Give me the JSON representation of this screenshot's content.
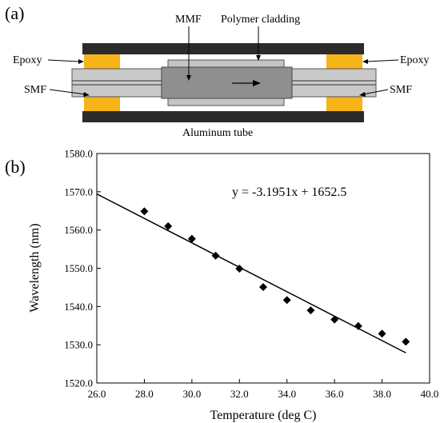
{
  "panel_a": {
    "label": "(a)",
    "labels": {
      "mmf": "MMF",
      "polymer_cladding": "Polymer cladding",
      "epoxy_left": "Epoxy",
      "epoxy_right": "Epoxy",
      "smf_left": "SMF",
      "smf_right": "SMF",
      "aluminum_tube": "Aluminum tube"
    },
    "colors": {
      "tube": "#2b2b2b",
      "epoxy": "#f6b418",
      "smf": "#c9c9c9",
      "mmf": "#8f8f8f",
      "cladding": "#c4c4c4"
    }
  },
  "chart_data": {
    "type": "scatter",
    "panel_label": "(b)",
    "xlabel": "Temperature (deg C)",
    "ylabel": "Wavelength (nm)",
    "xlim": [
      26.0,
      40.0
    ],
    "ylim": [
      1520.0,
      1580.0
    ],
    "x_ticks": [
      26.0,
      28.0,
      30.0,
      32.0,
      34.0,
      36.0,
      38.0,
      40.0
    ],
    "y_ticks": [
      1520.0,
      1530.0,
      1540.0,
      1550.0,
      1560.0,
      1570.0,
      1580.0
    ],
    "x_tick_labels": [
      "26.0",
      "28.0",
      "30.0",
      "32.0",
      "34.0",
      "36.0",
      "38.0",
      "40.0"
    ],
    "y_tick_labels": [
      "1520.0",
      "1530.0",
      "1540.0",
      "1550.0",
      "1560.0",
      "1570.0",
      "1580.0"
    ],
    "series": [
      {
        "marker": "diamond",
        "x": [
          28,
          29,
          30,
          31,
          32,
          33,
          34,
          35,
          36,
          37,
          38,
          39
        ],
        "y": [
          1564.9,
          1561.0,
          1557.7,
          1553.3,
          1549.9,
          1545.1,
          1541.7,
          1539.0,
          1536.6,
          1534.9,
          1532.9,
          1530.8
        ]
      }
    ],
    "fit": {
      "slope": -3.1951,
      "intercept": 1652.5,
      "x_range": [
        26.0,
        39.0
      ]
    },
    "annotation": "y = -3.1951x + 1652.5",
    "grid": false
  }
}
